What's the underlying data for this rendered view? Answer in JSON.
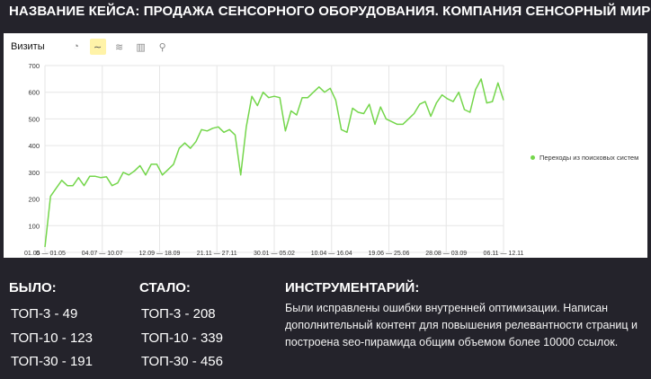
{
  "title": "НАЗВАНИЕ КЕЙСА: ПРОДАЖА СЕНСОРНОГО ОБОРУДОВАНИЯ. КОМПАНИЯ СЕНСОРНЫЙ МИР",
  "panel": {
    "title": "Визиты",
    "tools": [
      {
        "icon": "pie-chart-icon",
        "glyph": "◔",
        "active": false
      },
      {
        "icon": "line-chart-icon",
        "glyph": "∼",
        "active": true
      },
      {
        "icon": "stacked-area-icon",
        "glyph": "≋",
        "active": false
      },
      {
        "icon": "bar-chart-icon",
        "glyph": "▥",
        "active": false
      },
      {
        "icon": "map-pin-icon",
        "glyph": "⚲",
        "active": false
      }
    ]
  },
  "colors": {
    "background": "#24232b",
    "line": "#74d64b",
    "grid": "#e6e6e6"
  },
  "chart_data": {
    "type": "line",
    "ylim": [
      0,
      700
    ],
    "yticks": [
      0,
      100,
      200,
      300,
      400,
      500,
      600,
      700
    ],
    "xticks": [
      "01.05 — 01.05",
      "04.07 — 10.07",
      "12.09 — 18.09",
      "21.11 — 27.11",
      "30.01 — 05.02",
      "10.04 — 16.04",
      "19.06 — 25.06",
      "28.08 — 03.09",
      "06.11 — 12.11"
    ],
    "grid": true,
    "legend_position": "right",
    "series": [
      {
        "name": "Переходы из поисковых систем",
        "values": [
          20,
          210,
          240,
          270,
          250,
          250,
          280,
          250,
          285,
          285,
          280,
          283,
          250,
          260,
          300,
          290,
          305,
          325,
          290,
          330,
          330,
          290,
          310,
          330,
          390,
          410,
          390,
          415,
          460,
          455,
          465,
          470,
          450,
          460,
          440,
          290,
          470,
          585,
          550,
          600,
          580,
          585,
          580,
          455,
          530,
          515,
          580,
          580,
          600,
          620,
          600,
          615,
          570,
          460,
          450,
          540,
          525,
          520,
          555,
          480,
          545,
          500,
          490,
          480,
          480,
          500,
          520,
          555,
          565,
          510,
          560,
          590,
          575,
          565,
          600,
          535,
          525,
          610,
          650,
          560,
          565,
          635,
          570
        ]
      }
    ]
  },
  "before": {
    "heading": "БЫЛО:",
    "items": [
      "ТОП-3 - 49",
      "ТОП-10 - 123",
      "ТОП-30 - 191"
    ]
  },
  "after": {
    "heading": "СТАЛО:",
    "items": [
      "ТОП-3 - 208",
      "ТОП-10 - 339",
      "ТОП-30 - 456"
    ]
  },
  "tools_section": {
    "heading": "ИНСТРУМЕНТАРИЙ:",
    "text": "Были исправлены ошибки внутренней оптимизации. Написан дополнительный контент для повышения релевантности страниц и построена seo-пирамида общим объемом более 10000 ссылок."
  }
}
